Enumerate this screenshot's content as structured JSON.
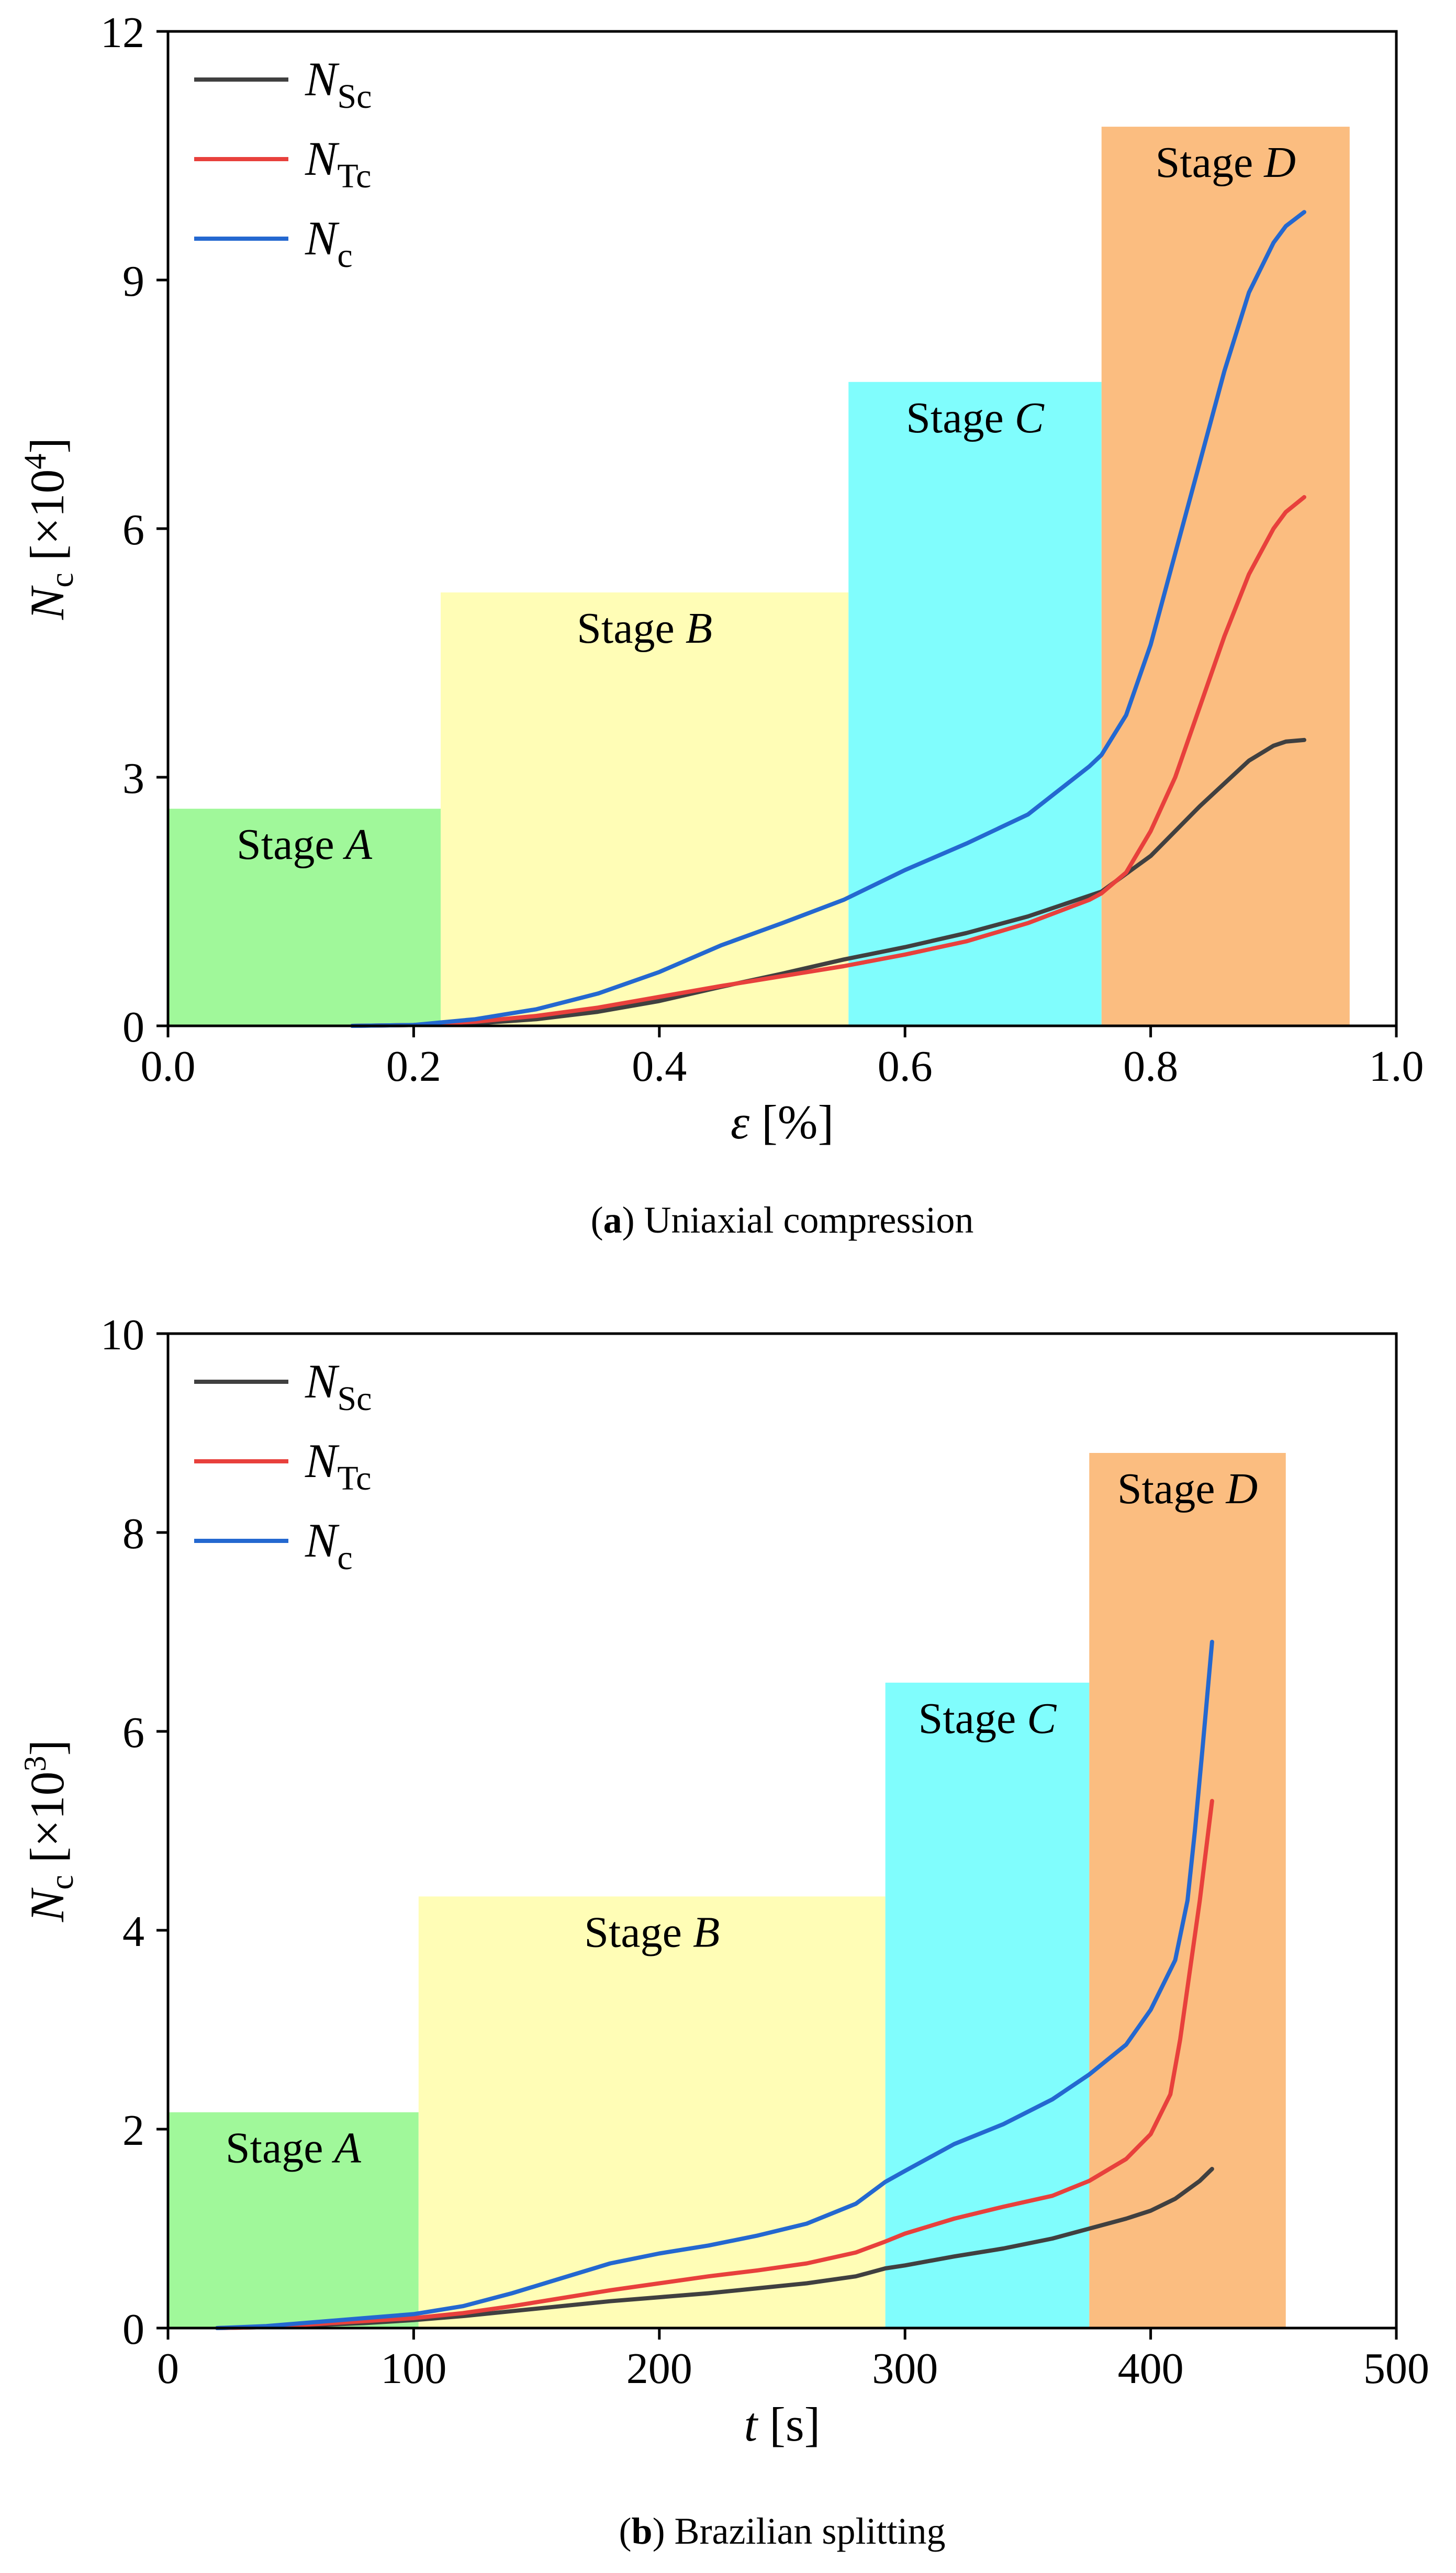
{
  "chart_data": [
    {
      "type": "line",
      "caption_label": "a",
      "caption_text": "Uniaxial compression",
      "xlabel_var": "ε",
      "xlabel_unit": "[%]",
      "ylabel_var": "N",
      "ylabel_sub": "c",
      "ylabel_unit_prefix": "[×10",
      "ylabel_exp": "4",
      "ylabel_unit_suffix": "]",
      "xlim": [
        0.0,
        1.0
      ],
      "ylim": [
        0,
        12
      ],
      "xticks": [
        0.0,
        0.2,
        0.4,
        0.6,
        0.8,
        1.0
      ],
      "xtick_labels": [
        "0.0",
        "0.2",
        "0.4",
        "0.6",
        "0.8",
        "1.0"
      ],
      "yticks": [
        0,
        3,
        6,
        9,
        12
      ],
      "ytick_labels": [
        "0",
        "3",
        "6",
        "9",
        "12"
      ],
      "stages": [
        {
          "prefix": "Stage",
          "letter": "A",
          "x0": 0.0,
          "x1": 0.222,
          "top": 2.62,
          "color": "#a0f89a"
        },
        {
          "prefix": "Stage",
          "letter": "B",
          "x0": 0.222,
          "x1": 0.554,
          "top": 5.23,
          "color": "#fffdb6"
        },
        {
          "prefix": "Stage",
          "letter": "C",
          "x0": 0.554,
          "x1": 0.76,
          "top": 7.77,
          "color": "#80fdfd"
        },
        {
          "prefix": "Stage",
          "letter": "D",
          "x0": 0.76,
          "x1": 0.962,
          "top": 10.85,
          "color": "#fbbd80"
        }
      ],
      "series": [
        {
          "name": "N",
          "sub": "Sc",
          "color": "#404040",
          "x": [
            0.15,
            0.2,
            0.25,
            0.3,
            0.35,
            0.4,
            0.45,
            0.5,
            0.55,
            0.6,
            0.65,
            0.7,
            0.75,
            0.76,
            0.8,
            0.84,
            0.88,
            0.9,
            0.91,
            0.925
          ],
          "y": [
            0,
            0.01,
            0.03,
            0.08,
            0.17,
            0.3,
            0.47,
            0.63,
            0.8,
            0.95,
            1.12,
            1.32,
            1.57,
            1.62,
            2.05,
            2.65,
            3.2,
            3.38,
            3.43,
            3.45
          ]
        },
        {
          "name": "N",
          "sub": "Tc",
          "color": "#e8403c",
          "x": [
            0.15,
            0.2,
            0.25,
            0.3,
            0.35,
            0.4,
            0.45,
            0.5,
            0.55,
            0.6,
            0.65,
            0.7,
            0.75,
            0.76,
            0.78,
            0.8,
            0.82,
            0.84,
            0.86,
            0.88,
            0.9,
            0.91,
            0.925
          ],
          "y": [
            0,
            0.01,
            0.05,
            0.12,
            0.22,
            0.35,
            0.48,
            0.6,
            0.72,
            0.86,
            1.02,
            1.24,
            1.52,
            1.6,
            1.85,
            2.35,
            3.0,
            3.85,
            4.7,
            5.45,
            6.0,
            6.2,
            6.38
          ]
        },
        {
          "name": "N",
          "sub": "c",
          "color": "#2468d0",
          "x": [
            0.15,
            0.2,
            0.25,
            0.3,
            0.35,
            0.4,
            0.45,
            0.5,
            0.55,
            0.6,
            0.65,
            0.7,
            0.75,
            0.76,
            0.78,
            0.8,
            0.82,
            0.84,
            0.86,
            0.88,
            0.9,
            0.91,
            0.925
          ],
          "y": [
            0,
            0.01,
            0.08,
            0.2,
            0.39,
            0.65,
            0.97,
            1.24,
            1.52,
            1.88,
            2.2,
            2.55,
            3.13,
            3.27,
            3.75,
            4.6,
            5.7,
            6.8,
            7.9,
            8.85,
            9.45,
            9.65,
            9.82
          ]
        }
      ]
    },
    {
      "type": "line",
      "caption_label": "b",
      "caption_text": "Brazilian splitting",
      "xlabel_var": "t",
      "xlabel_unit": "[s]",
      "ylabel_var": "N",
      "ylabel_sub": "c",
      "ylabel_unit_prefix": "[×10",
      "ylabel_exp": "3",
      "ylabel_unit_suffix": "]",
      "xlim": [
        0,
        500
      ],
      "ylim": [
        0,
        10
      ],
      "xticks": [
        0,
        100,
        200,
        300,
        400,
        500
      ],
      "xtick_labels": [
        "0",
        "100",
        "200",
        "300",
        "400",
        "500"
      ],
      "yticks": [
        0,
        2,
        4,
        6,
        8,
        10
      ],
      "ytick_labels": [
        "0",
        "2",
        "4",
        "6",
        "8",
        "10"
      ],
      "stages": [
        {
          "prefix": "Stage",
          "letter": "A",
          "x0": 0,
          "x1": 102,
          "top": 2.17,
          "color": "#a0f89a"
        },
        {
          "prefix": "Stage",
          "letter": "B",
          "x0": 102,
          "x1": 292,
          "top": 4.34,
          "color": "#fffdb6"
        },
        {
          "prefix": "Stage",
          "letter": "C",
          "x0": 292,
          "x1": 375,
          "top": 6.49,
          "color": "#80fdfd"
        },
        {
          "prefix": "Stage",
          "letter": "D",
          "x0": 375,
          "x1": 455,
          "top": 8.8,
          "color": "#fbbd80"
        }
      ],
      "series": [
        {
          "name": "N",
          "sub": "Sc",
          "color": "#404040",
          "x": [
            20,
            40,
            60,
            80,
            100,
            120,
            140,
            160,
            180,
            200,
            220,
            240,
            260,
            280,
            292,
            300,
            320,
            340,
            360,
            375,
            390,
            400,
            410,
            420,
            425
          ],
          "y": [
            0,
            0.01,
            0.03,
            0.05,
            0.08,
            0.12,
            0.17,
            0.22,
            0.27,
            0.31,
            0.35,
            0.4,
            0.45,
            0.52,
            0.6,
            0.63,
            0.72,
            0.8,
            0.9,
            1.0,
            1.1,
            1.18,
            1.3,
            1.48,
            1.6
          ]
        },
        {
          "name": "N",
          "sub": "Tc",
          "color": "#e8403c",
          "x": [
            20,
            40,
            60,
            80,
            100,
            120,
            140,
            160,
            180,
            200,
            220,
            240,
            260,
            280,
            292,
            300,
            320,
            340,
            360,
            375,
            390,
            400,
            408,
            412,
            416,
            420,
            425
          ],
          "y": [
            0,
            0.01,
            0.04,
            0.07,
            0.1,
            0.15,
            0.22,
            0.3,
            0.38,
            0.45,
            0.52,
            0.58,
            0.65,
            0.76,
            0.87,
            0.95,
            1.1,
            1.22,
            1.33,
            1.48,
            1.7,
            1.95,
            2.35,
            2.9,
            3.6,
            4.3,
            5.3
          ]
        },
        {
          "name": "N",
          "sub": "c",
          "color": "#2468d0",
          "x": [
            20,
            40,
            60,
            80,
            100,
            120,
            140,
            160,
            180,
            200,
            220,
            240,
            260,
            280,
            292,
            300,
            320,
            340,
            360,
            375,
            390,
            400,
            410,
            415,
            418,
            421,
            425
          ],
          "y": [
            0,
            0.02,
            0.06,
            0.1,
            0.14,
            0.22,
            0.35,
            0.5,
            0.65,
            0.75,
            0.83,
            0.93,
            1.05,
            1.25,
            1.47,
            1.58,
            1.85,
            2.05,
            2.3,
            2.55,
            2.85,
            3.2,
            3.7,
            4.3,
            5.0,
            5.8,
            6.9
          ]
        }
      ]
    }
  ]
}
